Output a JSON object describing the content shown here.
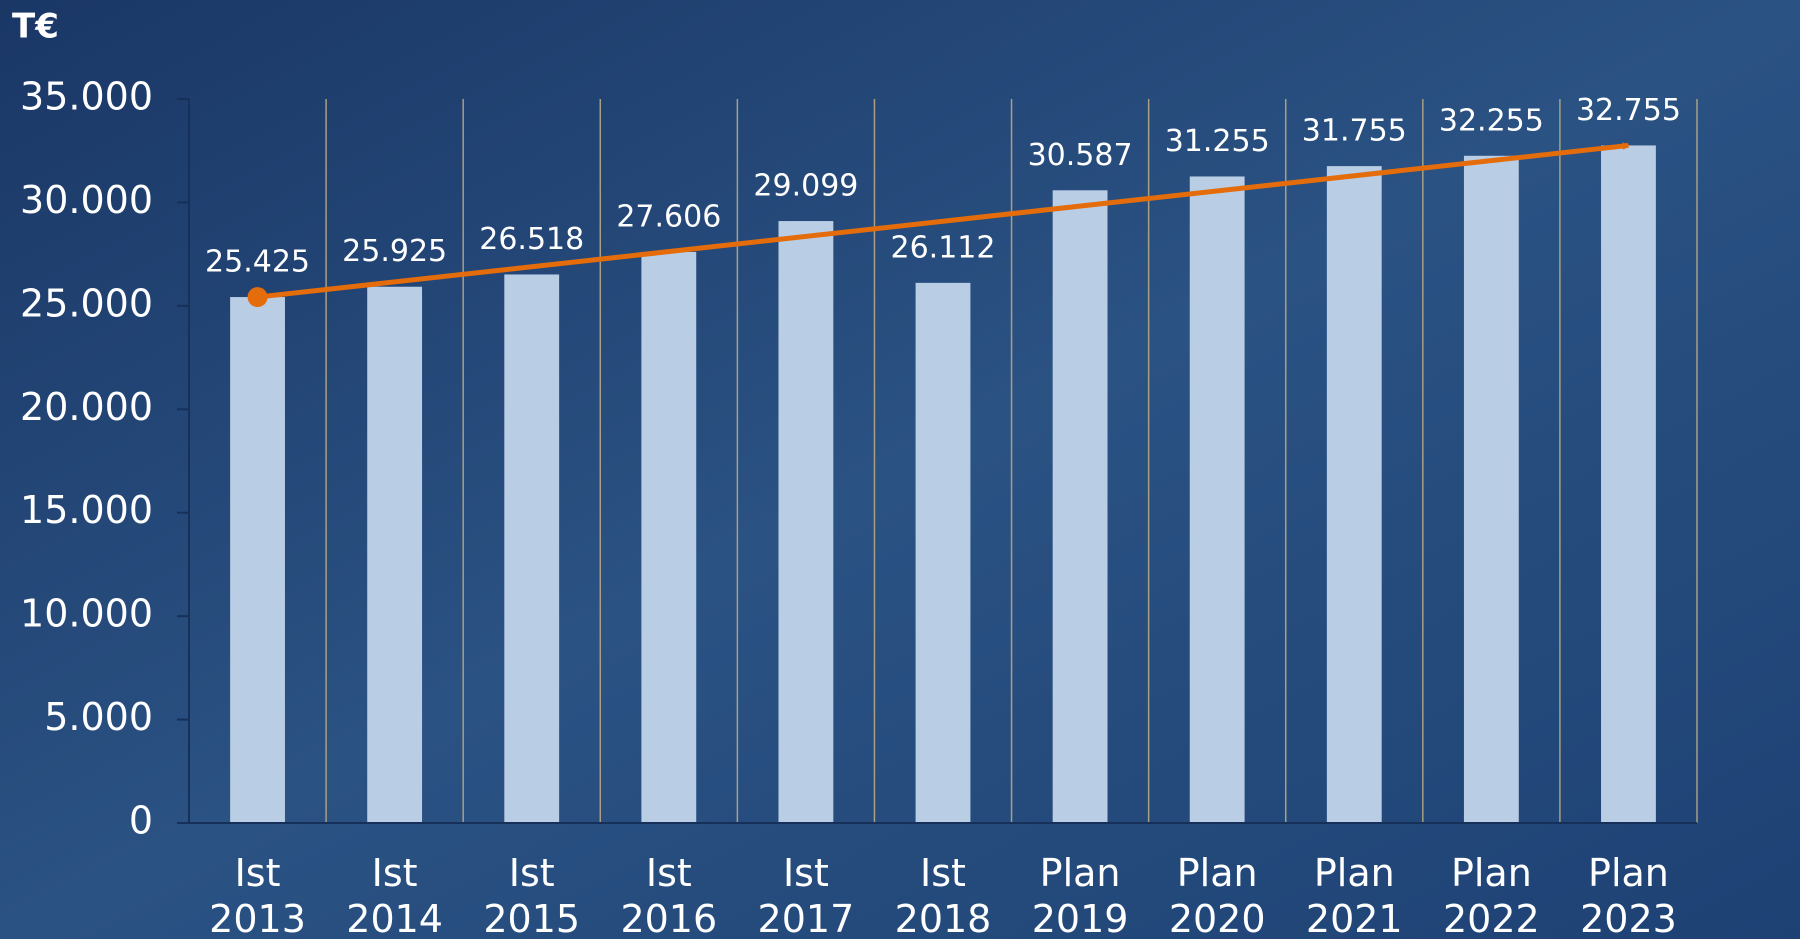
{
  "chart_data": {
    "type": "bar",
    "y_axis_title": "T€",
    "categories": [
      [
        "Ist",
        "2013"
      ],
      [
        "Ist",
        "2014"
      ],
      [
        "Ist",
        "2015"
      ],
      [
        "Ist",
        "2016"
      ],
      [
        "Ist",
        "2017"
      ],
      [
        "Ist",
        "2018"
      ],
      [
        "Plan",
        "2019"
      ],
      [
        "Plan",
        "2020"
      ],
      [
        "Plan",
        "2021"
      ],
      [
        "Plan",
        "2022"
      ],
      [
        "Plan",
        "2023"
      ]
    ],
    "values": [
      25425,
      25925,
      26518,
      27606,
      29099,
      26112,
      30587,
      31255,
      31755,
      32255,
      32755
    ],
    "value_labels": [
      "25.425",
      "25.925",
      "26.518",
      "27.606",
      "29.099",
      "26.112",
      "30.587",
      "31.255",
      "31.755",
      "32.255",
      "32.755"
    ],
    "color": "#b9cde5",
    "trend_color": "#e46c0a",
    "ylim": [
      0,
      35000
    ],
    "yticks": [
      0,
      {
        "value": 5000,
        "label": "5.000"
      },
      {
        "value": 10000,
        "label": "10.000"
      },
      {
        "value": 15000,
        "label": "15.000"
      },
      {
        "value": 20000,
        "label": "20.000"
      },
      {
        "value": 25000,
        "label": "25.000"
      },
      {
        "value": 30000,
        "label": "30.000"
      },
      {
        "value": 35000,
        "label": "35.000"
      }
    ]
  }
}
